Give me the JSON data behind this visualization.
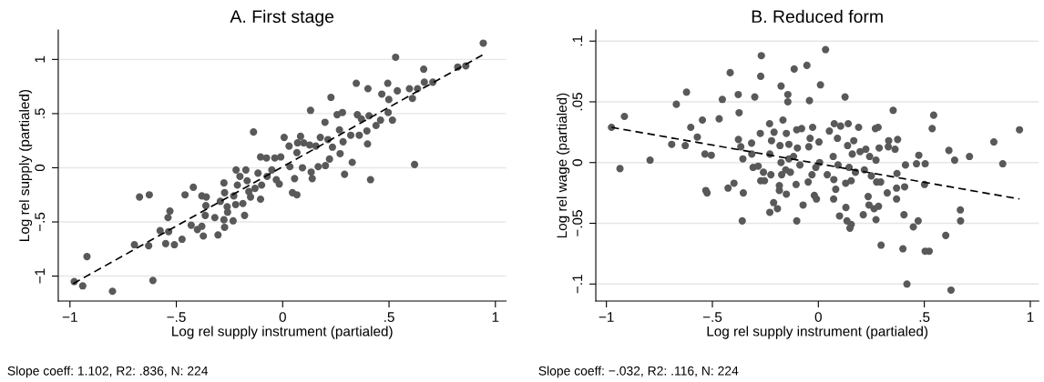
{
  "chart_data": [
    {
      "type": "scatter",
      "title": "A. First stage",
      "xlabel": "Log rel supply instrument (partialed)",
      "ylabel": "Log rel supply (partialed)",
      "annotations": [
        "Slope coeff: 1.102, R2: .836, N: 224"
      ],
      "xlim": [
        -1.055,
        1.05
      ],
      "ylim": [
        -1.23,
        1.27
      ],
      "xticks": [
        {
          "value": -1,
          "label": "−1"
        },
        {
          "value": -0.5,
          "label": "−.5"
        },
        0,
        {
          "value": 0.5,
          "label": ".5"
        },
        1
      ],
      "yticks": [
        {
          "value": -1,
          "label": "−1"
        },
        {
          "value": -0.5,
          "label": "−.5"
        },
        0,
        {
          "value": 0.5,
          "label": ".5"
        },
        1
      ],
      "grid": "y",
      "series": [
        {
          "marker": "circle",
          "color": "#595959",
          "x": [
            -0.98,
            -0.94,
            -0.8,
            -0.61,
            -0.92,
            -0.697,
            -0.673,
            -0.627,
            -0.63,
            -0.576,
            -0.55,
            -0.536,
            -0.53,
            -0.539,
            -0.509,
            -0.473,
            -0.459,
            -0.43,
            -0.42,
            -0.401,
            -0.38,
            -0.373,
            -0.38,
            -0.359,
            -0.361,
            -0.364,
            -0.304,
            -0.293,
            -0.319,
            -0.276,
            -0.273,
            -0.273,
            -0.276,
            -0.261,
            -0.259,
            -0.233,
            -0.23,
            -0.221,
            -0.219,
            -0.201,
            -0.213,
            -0.179,
            -0.187,
            -0.173,
            -0.167,
            -0.159,
            -0.151,
            -0.137,
            -0.13,
            -0.116,
            -0.104,
            -0.104,
            -0.099,
            -0.076,
            -0.073,
            -0.051,
            -0.037,
            -0.03,
            -0.009,
            -0.016,
            0.007,
            0.03,
            0.034,
            0.046,
            0.056,
            0.067,
            0.067,
            0.07,
            0.084,
            0.093,
            0.099,
            0.127,
            0.131,
            0.134,
            0.139,
            0.156,
            0.167,
            0.177,
            0.199,
            0.201,
            0.213,
            0.22,
            0.227,
            0.234,
            0.256,
            0.267,
            0.27,
            0.281,
            0.284,
            0.291,
            0.32,
            0.327,
            0.346,
            0.351,
            0.36,
            0.37,
            0.396,
            0.401,
            0.399,
            0.406,
            0.413,
            0.439,
            0.46,
            0.466,
            0.494,
            0.499,
            0.496,
            0.516,
            0.531,
            0.539,
            0.596,
            0.61,
            0.62,
            0.634,
            0.663,
            0.666,
            0.706,
            0.823,
            0.861,
            0.943
          ],
          "values": [
            -1.05,
            -1.09,
            -1.14,
            -1.04,
            -0.82,
            -0.71,
            -0.27,
            -0.25,
            -0.72,
            -0.58,
            -0.7,
            -0.59,
            -0.4,
            -0.46,
            -0.71,
            -0.66,
            -0.25,
            -0.53,
            -0.18,
            -0.57,
            -0.54,
            -0.63,
            -0.26,
            -0.27,
            -0.35,
            -0.44,
            -0.62,
            -0.31,
            -0.46,
            -0.14,
            -0.23,
            -0.55,
            -0.48,
            -0.36,
            -0.41,
            -0.49,
            -0.26,
            -0.34,
            -0.02,
            -0.08,
            -0.16,
            -0.44,
            -0.33,
            -0.02,
            -0.12,
            -0.22,
            -0.27,
            0.33,
            -0.19,
            -0.05,
            0.1,
            -0.29,
            -0.16,
            0.09,
            -0.08,
            -0.02,
            0.09,
            -0.11,
            0.1,
            -0.15,
            0.28,
            0.2,
            0.01,
            -0.23,
            -0.1,
            -0.25,
            0.14,
            0.23,
            0.29,
            0.0,
            0.23,
            0.21,
            0.53,
            -0.04,
            -0.1,
            0.2,
            0.01,
            0.28,
            0.42,
            0.02,
            0.26,
            0.08,
            0.65,
            0.19,
            0.49,
            0.35,
            0.13,
            0.51,
            0.24,
            -0.06,
            0.3,
            0.05,
            0.78,
            0.49,
            0.3,
            0.45,
            0.34,
            0.73,
            0.22,
            0.48,
            -0.11,
            0.39,
            0.44,
            0.68,
            0.78,
            0.63,
            0.51,
            0.44,
            1.02,
            0.71,
            0.73,
            0.64,
            0.03,
            0.73,
            0.91,
            0.79,
            0.79,
            0.93,
            0.94,
            1.15
          ]
        },
        {
          "type": "line",
          "marker": "none",
          "color": "#000000",
          "line_style": "dashed",
          "x": [
            -0.985,
            0.939
          ],
          "values": [
            -1.07,
            1.04
          ]
        }
      ]
    },
    {
      "type": "scatter",
      "title": "B. Reduced form",
      "xlabel": "Log rel supply instrument (partialed)",
      "ylabel": "Log rel wage (partialed)",
      "annotations": [
        "Slope coeff: −.032, R2: .116, N: 224"
      ],
      "xlim": [
        -1.05,
        1.04
      ],
      "ylim": [
        -0.114,
        0.109
      ],
      "xticks": [
        {
          "value": -1,
          "label": "−1"
        },
        {
          "value": -0.5,
          "label": "−.5"
        },
        0,
        {
          "value": 0.5,
          "label": ".5"
        },
        1
      ],
      "yticks": [
        {
          "value": -0.1,
          "label": "−.1"
        },
        {
          "value": -0.05,
          "label": "−.05"
        },
        0,
        {
          "value": 0.05,
          "label": ".05"
        },
        {
          "value": 0.1,
          "label": ".1"
        }
      ],
      "grid": "y",
      "series": [
        {
          "marker": "circle",
          "color": "#595959",
          "x": [
            -0.976,
            -0.936,
            -0.915,
            -0.794,
            -0.692,
            -0.67,
            -0.628,
            -0.622,
            -0.602,
            -0.571,
            -0.547,
            -0.535,
            -0.505,
            -0.531,
            -0.525,
            -0.468,
            -0.453,
            -0.426,
            -0.416,
            -0.398,
            -0.378,
            -0.374,
            -0.377,
            -0.366,
            -0.356,
            -0.354,
            -0.359,
            -0.315,
            -0.314,
            -0.308,
            -0.3,
            -0.284,
            -0.274,
            -0.272,
            -0.269,
            -0.259,
            -0.272,
            -0.254,
            -0.23,
            -0.229,
            -0.224,
            -0.221,
            -0.229,
            -0.211,
            -0.209,
            -0.193,
            -0.184,
            -0.184,
            -0.181,
            -0.176,
            -0.176,
            -0.173,
            -0.167,
            -0.151,
            -0.154,
            -0.151,
            -0.144,
            -0.144,
            -0.139,
            -0.139,
            -0.132,
            -0.117,
            -0.114,
            -0.105,
            -0.102,
            -0.099,
            -0.102,
            -0.087,
            -0.079,
            -0.072,
            -0.054,
            -0.048,
            -0.045,
            -0.042,
            -0.039,
            -0.03,
            -0.027,
            -0.019,
            -0.009,
            -0.012,
            0.003,
            0.01,
            0.006,
            0.034,
            0.042,
            0.052,
            0.07,
            0.073,
            0.072,
            0.075,
            0.082,
            0.09,
            0.093,
            0.1,
            0.105,
            0.126,
            0.129,
            0.13,
            0.135,
            0.138,
            0.141,
            0.145,
            0.149,
            0.155,
            0.155,
            0.16,
            0.167,
            0.175,
            0.19,
            0.197,
            0.212,
            0.217,
            0.224,
            0.235,
            0.242,
            0.239,
            0.25,
            0.263,
            0.272,
            0.272,
            0.275,
            0.284,
            0.269,
            0.282,
            0.287,
            0.294,
            0.296,
            0.325,
            0.33,
            0.332,
            0.353,
            0.362,
            0.369,
            0.374,
            0.371,
            0.369,
            0.399,
            0.404,
            0.407,
            0.411,
            0.418,
            0.448,
            0.463,
            0.471,
            0.474,
            0.501,
            0.504,
            0.504,
            0.523,
            0.537,
            0.544,
            0.601,
            0.616,
            0.626,
            0.643,
            0.67,
            0.671,
            0.713,
            0.828,
            0.87,
            0.949
          ],
          "values": [
            0.029,
            -0.005,
            0.038,
            0.002,
            0.015,
            0.048,
            0.014,
            0.058,
            0.029,
            0.021,
            0.035,
            0.007,
            0.006,
            -0.023,
            -0.025,
            0.036,
            0.052,
            -0.021,
            0.074,
            -0.017,
            0.056,
            0.041,
            0.019,
            0.013,
            0.003,
            -0.025,
            -0.048,
            0.016,
            0.007,
            -0.004,
            0.054,
            -0.003,
            0.024,
            0.071,
            0.088,
            -0.008,
            -0.015,
            -0.015,
            0.032,
            0.007,
            -0.01,
            0.018,
            -0.041,
            -0.033,
            0.025,
            -0.038,
            -0.019,
            -0.023,
            0.014,
            0.063,
            0.0,
            -0.01,
            0.035,
            0.024,
            -0.006,
            -0.026,
            0.056,
            0.05,
            0.015,
            0.003,
            -0.008,
            0.005,
            0.077,
            -0.018,
            0.027,
            0.012,
            -0.048,
            -0.002,
            0.028,
            -0.035,
            0.08,
            -0.016,
            0.013,
            0.051,
            0.02,
            -0.01,
            0.029,
            -0.027,
            -0.03,
            -0.004,
            0.017,
            0.064,
            0.0,
            0.093,
            -0.01,
            0.026,
            0.005,
            -0.014,
            -0.03,
            0.032,
            -0.022,
            0.02,
            -0.002,
            -0.044,
            0.03,
            0.054,
            -0.017,
            -0.037,
            -0.048,
            0.014,
            0.032,
            -0.004,
            -0.054,
            -0.051,
            -0.015,
            0.007,
            0.018,
            -0.008,
            0.029,
            0.009,
            -0.043,
            -0.006,
            0.011,
            -0.028,
            0.005,
            -0.035,
            -0.011,
            -0.038,
            0.002,
            -0.047,
            -0.016,
            -0.036,
            0.028,
            0.029,
            0.012,
            -0.016,
            -0.068,
            -0.025,
            0.013,
            0.018,
            0.043,
            0.011,
            -0.021,
            0.019,
            -0.009,
            -0.03,
            -0.071,
            -0.043,
            -0.02,
            -0.002,
            -0.1,
            -0.053,
            -0.001,
            -0.048,
            0.006,
            -0.018,
            -0.001,
            -0.073,
            -0.073,
            0.028,
            0.039,
            -0.06,
            0.01,
            -0.105,
            0.002,
            -0.039,
            -0.048,
            0.005,
            0.017,
            -0.001,
            0.027
          ]
        },
        {
          "type": "line",
          "marker": "none",
          "color": "#000000",
          "line_style": "dashed",
          "x": [
            -0.976,
            0.949
          ],
          "values": [
            0.029,
            -0.03
          ]
        }
      ]
    }
  ]
}
